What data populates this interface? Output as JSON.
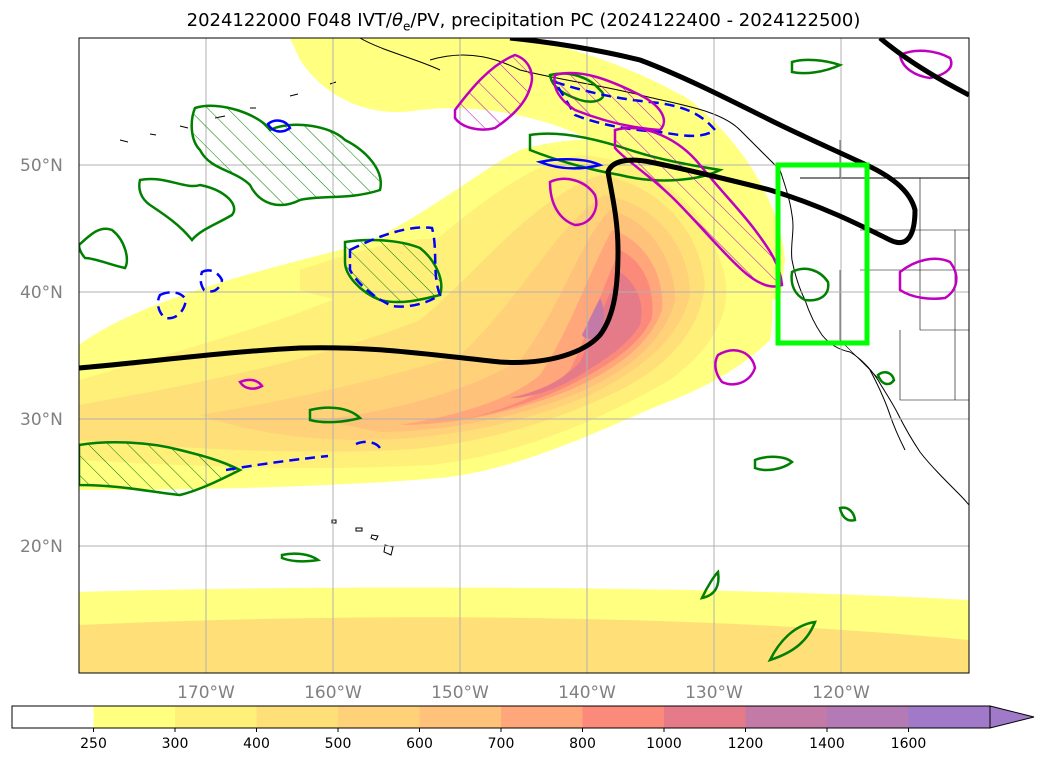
{
  "title": {
    "prefix": "2024122000 F048 IVT/",
    "theta": "θ",
    "theta_sub": "e",
    "suffix": "/PV, precipitation PC (2024122400 - 2024122500)"
  },
  "map": {
    "projection": "plate-carree",
    "lon_range": [
      -180,
      -110
    ],
    "lat_range": [
      10,
      60
    ],
    "lat_labels": [
      "20°N",
      "30°N",
      "40°N",
      "50°N"
    ],
    "lon_labels": [
      "170°W",
      "160°W",
      "150°W",
      "140°W",
      "130°W",
      "120°W"
    ],
    "gridlines": true,
    "highlight_box": {
      "color": "#00ff00",
      "lon": [
        -125,
        -118
      ],
      "lat": [
        36,
        50
      ]
    },
    "contour_colors": {
      "theta_e": "#000000",
      "pv_positive": "#008000",
      "pv_negative": "#0000ff",
      "precipitation": "#c000c0"
    }
  },
  "colorbar": {
    "levels": [
      "250",
      "300",
      "400",
      "500",
      "600",
      "700",
      "800",
      "1000",
      "1200",
      "1400",
      "1600"
    ],
    "colors": [
      "#ffffff",
      "#ffff80",
      "#fff07a",
      "#ffe078",
      "#ffd27a",
      "#ffc27a",
      "#ffa67a",
      "#fb8a7a",
      "#e57a88",
      "#c47aa6",
      "#b47ab6",
      "#a07ac8"
    ],
    "extend": "max"
  }
}
